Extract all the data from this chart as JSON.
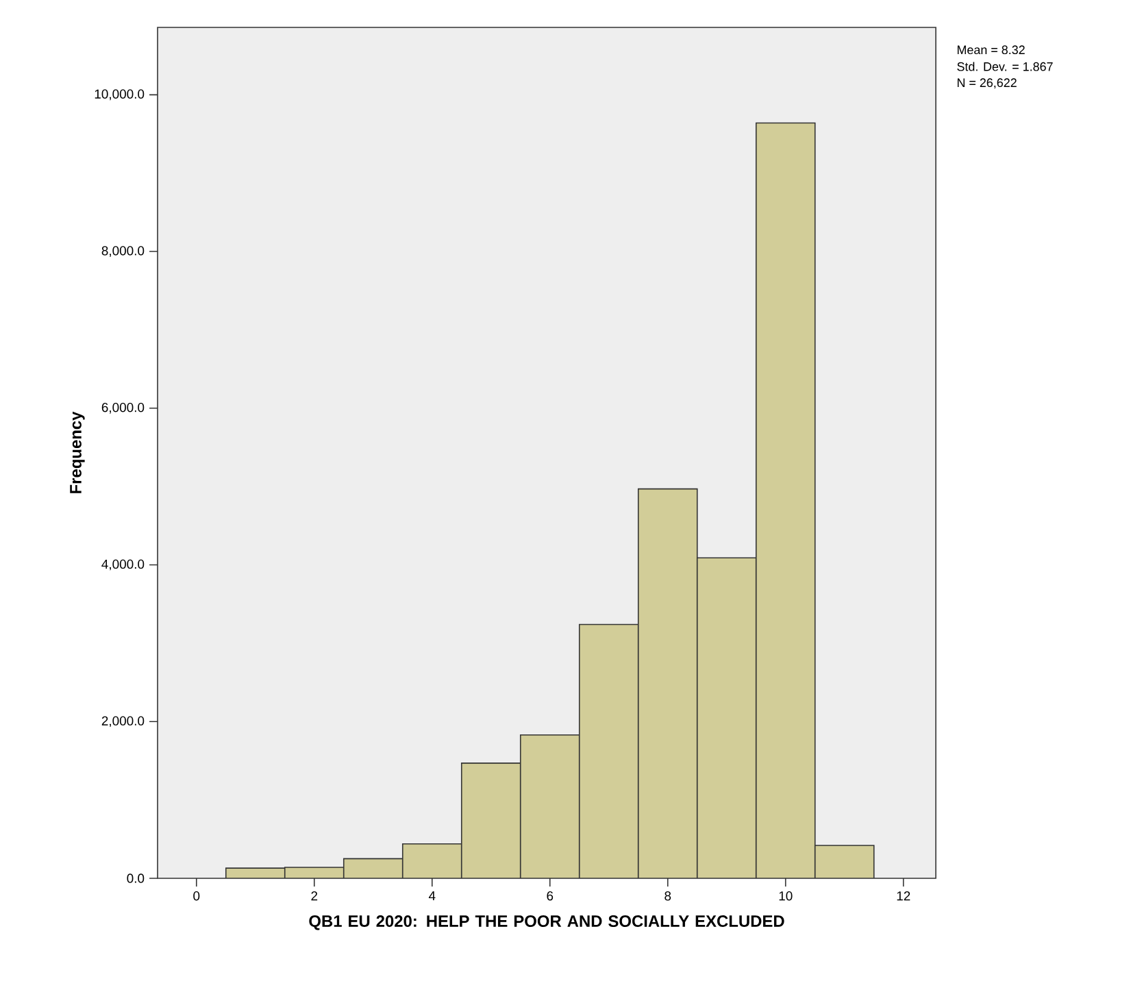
{
  "chart_data": {
    "type": "histogram",
    "xlabel": "QB1 EU 2020: HELP THE POOR AND SOCIALLY EXCLUDED",
    "ylabel": "Frequency",
    "bins": [
      0.5,
      1.5,
      2.5,
      3.5,
      4.5,
      5.5,
      6.5,
      7.5,
      8.5,
      9.5,
      10.5,
      11.5
    ],
    "values": [
      130,
      140,
      250,
      440,
      1470,
      1830,
      3240,
      4970,
      4090,
      9640,
      420
    ],
    "color": "#d2cd98",
    "xlim": [
      -0.66,
      12.55
    ],
    "ylim": [
      0,
      10860
    ],
    "xticks": [
      0,
      2,
      4,
      6,
      8,
      10,
      12
    ],
    "yticks": [
      {
        "value": 0,
        "label": "0.0"
      },
      {
        "value": 2000,
        "label": "2,000.0"
      },
      {
        "value": 4000,
        "label": "4,000.0"
      },
      {
        "value": 6000,
        "label": "6,000.0"
      },
      {
        "value": 8000,
        "label": "8,000.0"
      },
      {
        "value": 10000,
        "label": "10,000.0"
      }
    ],
    "annotations": [
      "Mean = 8.32",
      "Std. Dev. = 1.867",
      "N = 26,622"
    ]
  }
}
